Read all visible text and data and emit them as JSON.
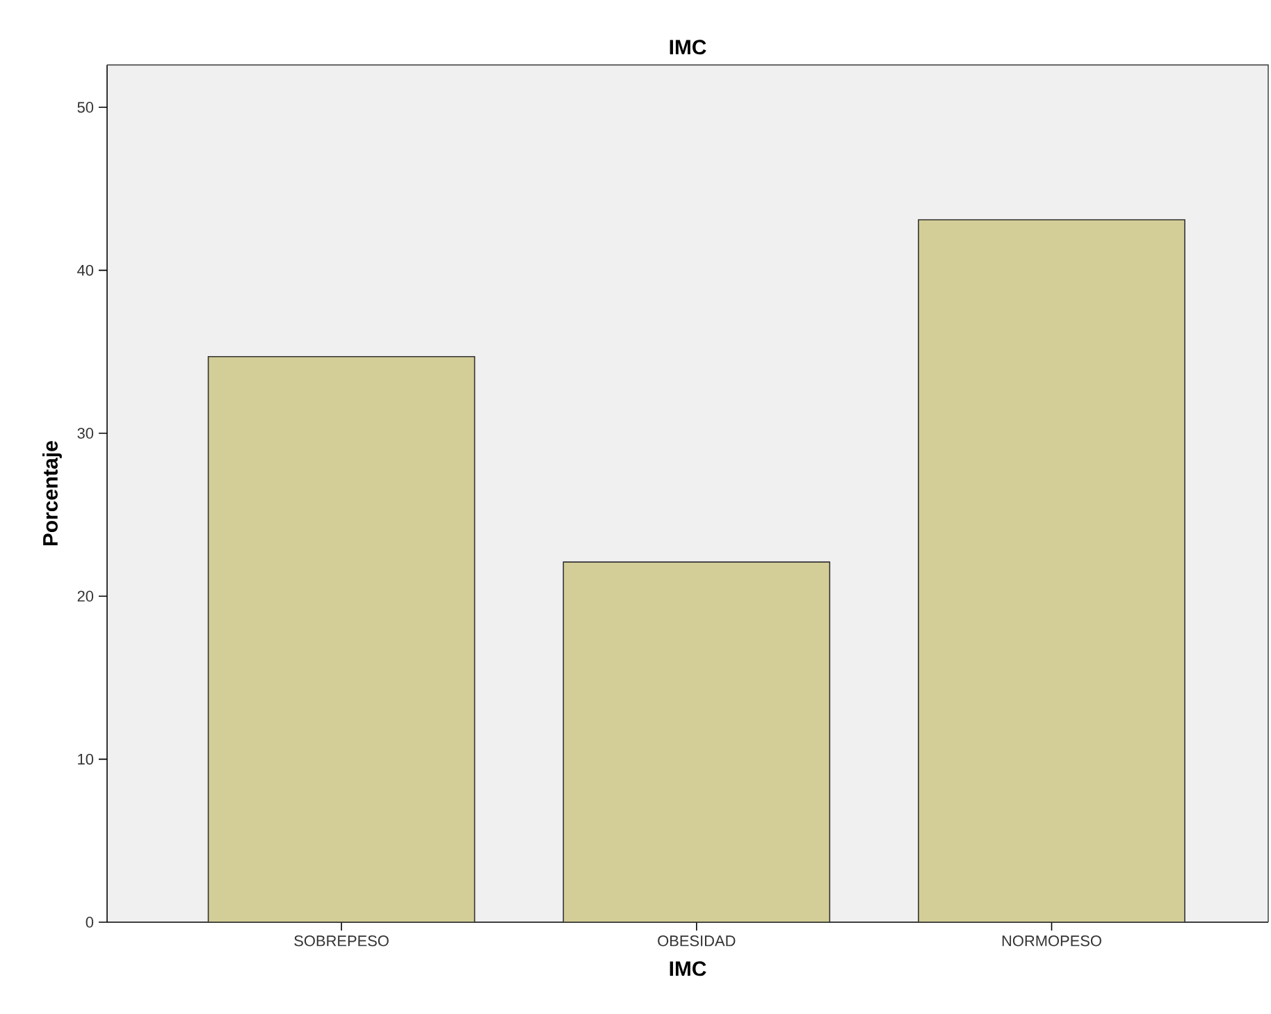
{
  "chart_data": {
    "type": "bar",
    "title": "IMC",
    "xlabel": "IMC",
    "ylabel": "Porcentaje",
    "categories": [
      "SOBREPESO",
      "OBESIDAD",
      "NORMOPESO"
    ],
    "values": [
      34.7,
      22.1,
      43.1
    ],
    "color": "#d3ce97",
    "ylim": [
      0,
      52.6
    ],
    "yticks": [
      0,
      10,
      20,
      30,
      40,
      50
    ],
    "grid": false
  }
}
